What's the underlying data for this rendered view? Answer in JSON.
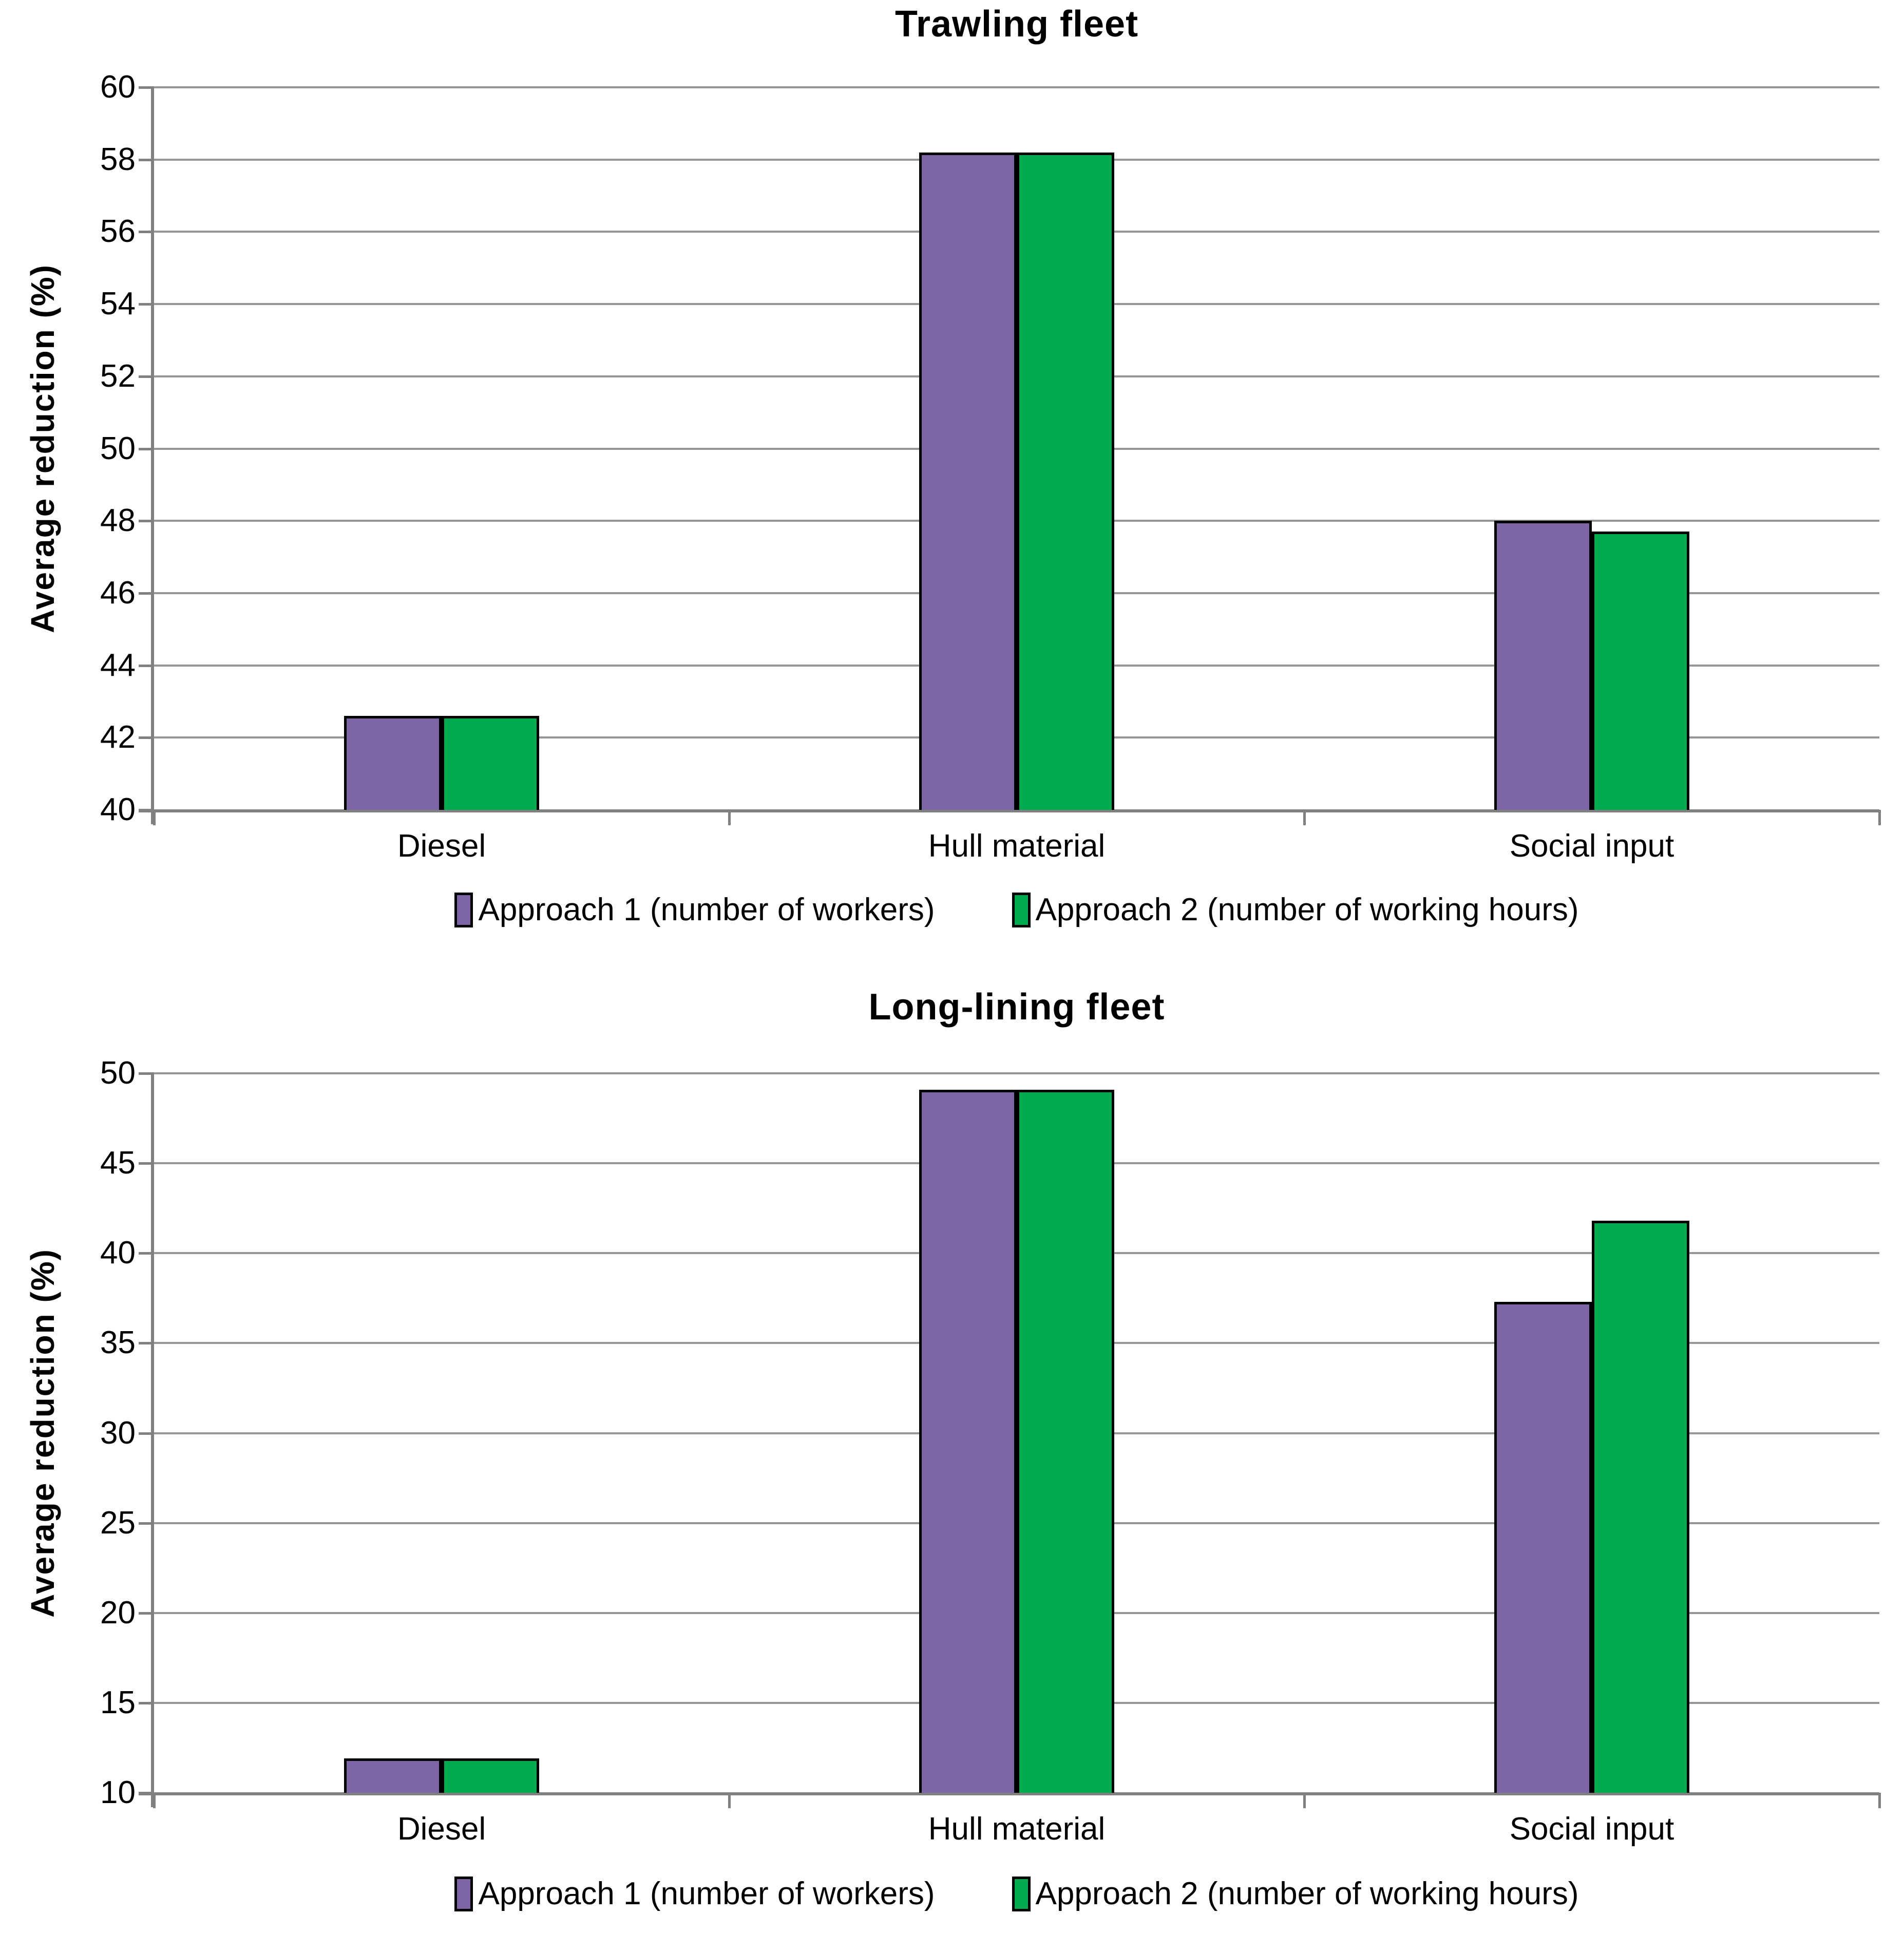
{
  "colors": {
    "approach1": "#7D65A6",
    "approach2": "#00AB4F",
    "gridline": "#969696",
    "axis": "#808080",
    "bar_border": "#000000",
    "background": "#FFFFFF",
    "text": "#000000"
  },
  "legend": {
    "items": [
      {
        "label": "Approach 1 (number of workers)",
        "color": "#7D65A6"
      },
      {
        "label": "Approach 2 (number of working hours)",
        "color": "#00AB4F"
      }
    ]
  },
  "chart_data": [
    {
      "type": "bar",
      "title": "Trawling fleet",
      "xlabel": "",
      "ylabel": "Average reduction (%)",
      "categories": [
        "Diesel",
        "Hull material",
        "Social input"
      ],
      "series": [
        {
          "name": "Approach 1 (number of workers)",
          "color": "#7D65A6",
          "values": [
            42.6,
            58.2,
            48.0
          ]
        },
        {
          "name": "Approach 2 (number of working hours)",
          "color": "#00AB4F",
          "values": [
            42.6,
            58.2,
            47.7
          ]
        }
      ],
      "ylim": [
        40,
        60
      ],
      "ytick_step": 2,
      "ytick_labels": [
        "40",
        "42",
        "44",
        "46",
        "48",
        "50",
        "52",
        "54",
        "56",
        "58",
        "60"
      ],
      "grid": true,
      "legend_position": "bottom"
    },
    {
      "type": "bar",
      "title": "Long-lining fleet",
      "xlabel": "",
      "ylabel": "Average reduction (%)",
      "categories": [
        "Diesel",
        "Hull material",
        "Social input"
      ],
      "series": [
        {
          "name": "Approach 1 (number of workers)",
          "color": "#7D65A6",
          "values": [
            11.9,
            49.1,
            37.3
          ]
        },
        {
          "name": "Approach 2 (number of working hours)",
          "color": "#00AB4F",
          "values": [
            11.9,
            49.1,
            41.8
          ]
        }
      ],
      "ylim": [
        10,
        50
      ],
      "ytick_step": 5,
      "ytick_labels": [
        "10",
        "15",
        "20",
        "25",
        "30",
        "35",
        "40",
        "45",
        "50"
      ],
      "grid": true,
      "legend_position": "bottom"
    }
  ]
}
